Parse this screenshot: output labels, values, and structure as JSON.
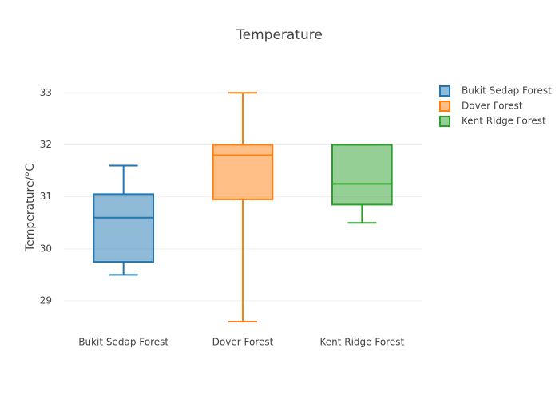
{
  "chart_data": {
    "type": "box",
    "title": "Temperature",
    "y_label": "Temperature/°C",
    "categories": [
      "Bukit Sedap Forest",
      "Dover Forest",
      "Kent Ridge Forest"
    ],
    "series": [
      {
        "name": "Bukit Sedap Forest",
        "color": "#1f77b4",
        "min": 29.5,
        "q1": 29.75,
        "median": 30.6,
        "q3": 31.05,
        "max": 31.6
      },
      {
        "name": "Dover Forest",
        "color": "#ff7f0e",
        "min": 28.6,
        "q1": 30.95,
        "median": 31.8,
        "q3": 32,
        "max": 33
      },
      {
        "name": "Kent Ridge Forest",
        "color": "#2ca02c",
        "min": 30.5,
        "q1": 30.85,
        "median": 31.25,
        "q3": 32,
        "max": 32
      }
    ],
    "ylim": [
      28.34,
      33.25
    ],
    "yticks": [
      29,
      30,
      31,
      32,
      33
    ],
    "grid": true,
    "legend": "top-right"
  }
}
